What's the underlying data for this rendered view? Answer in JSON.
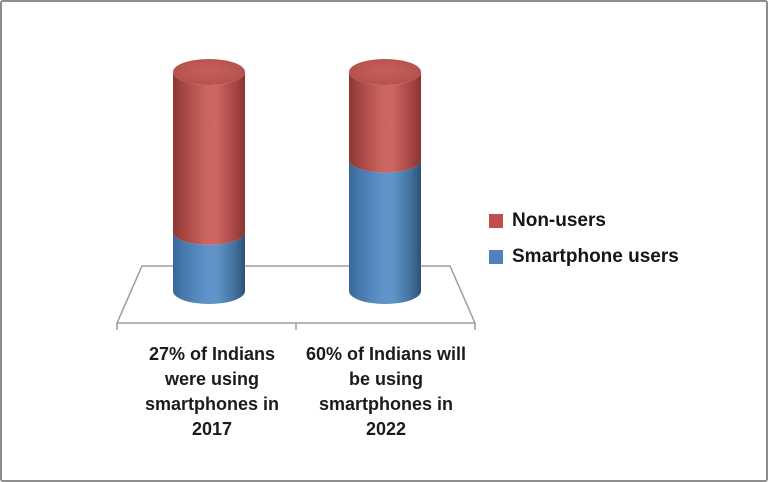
{
  "chart_data": {
    "type": "bar",
    "variant": "3d-cylinder-100-percent-stacked",
    "title": "",
    "xlabel": "",
    "ylabel": "",
    "unit": "percent",
    "ylim": [
      0,
      100
    ],
    "grid": false,
    "legend_position": "right",
    "categories": [
      {
        "lines": [
          "27% of Indians",
          "were using",
          "smartphones in",
          "2017"
        ]
      },
      {
        "lines": [
          "60% of Indians will",
          "be using",
          "smartphones in",
          "2022"
        ]
      }
    ],
    "series": [
      {
        "name": "Smartphone users",
        "color": "#4f81bd",
        "values": [
          27,
          60
        ]
      },
      {
        "name": "Non-users",
        "color": "#c0504d",
        "values": [
          73,
          40
        ]
      }
    ],
    "colors": {
      "floor_stroke": "#9d9d9d",
      "text": "#1b1b1b"
    }
  }
}
